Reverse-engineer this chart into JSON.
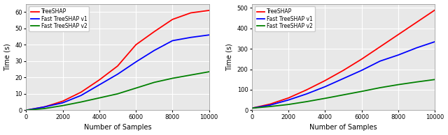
{
  "left": {
    "x": [
      0,
      1000,
      2000,
      3000,
      4000,
      5000,
      6000,
      7000,
      8000,
      9000,
      10000
    ],
    "treeshap": [
      0.0,
      2.0,
      5.5,
      11.0,
      18.5,
      27.0,
      40.0,
      48.0,
      55.5,
      59.5,
      61.0
    ],
    "fast_v1": [
      0.0,
      2.0,
      4.5,
      9.0,
      15.5,
      22.0,
      29.5,
      36.5,
      42.5,
      44.5,
      46.0
    ],
    "fast_v2": [
      0.0,
      1.0,
      2.8,
      5.0,
      7.5,
      10.0,
      13.5,
      17.0,
      19.5,
      21.5,
      23.5
    ],
    "ylabel": "Time (s)",
    "xlabel": "Number of Samples",
    "ylim": [
      0,
      65
    ],
    "xlim": [
      0,
      10000
    ],
    "yticks": [
      0,
      10,
      20,
      30,
      40,
      50,
      60
    ],
    "xticks": [
      0,
      2000,
      4000,
      6000,
      8000,
      10000
    ]
  },
  "right": {
    "x": [
      0,
      1000,
      2000,
      3000,
      4000,
      5000,
      6000,
      7000,
      8000,
      9000,
      10000
    ],
    "treeshap": [
      10,
      30,
      60,
      100,
      145,
      195,
      250,
      310,
      370,
      430,
      490
    ],
    "fast_v1": [
      10,
      25,
      50,
      80,
      115,
      155,
      195,
      240,
      270,
      305,
      335
    ],
    "fast_v2": [
      10,
      18,
      28,
      42,
      58,
      75,
      92,
      110,
      125,
      138,
      150
    ],
    "ylabel": "Time (s)",
    "xlabel": "Number of Samples",
    "ylim": [
      0,
      520
    ],
    "xlim": [
      0,
      10000
    ],
    "yticks": [
      0,
      100,
      200,
      300,
      400,
      500
    ],
    "xticks": [
      0,
      2000,
      4000,
      6000,
      8000,
      10000
    ]
  },
  "legend_labels": [
    "TreeSHAP",
    "Fast TreeSHAP v1",
    "Fast TreeSHAP v2"
  ],
  "colors": [
    "#ff0000",
    "#0000ff",
    "#008000"
  ],
  "linewidth": 1.3,
  "bg_color": "#e8e8e8"
}
